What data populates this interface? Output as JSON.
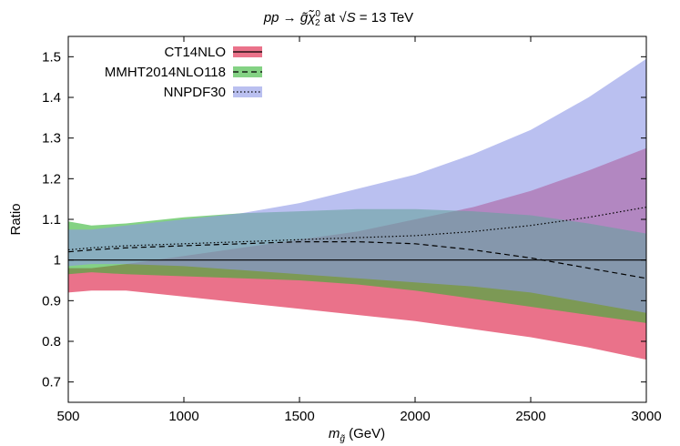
{
  "chart_data": {
    "type": "area",
    "title": "pp → g̃χ̃₀² at √S = 13 TeV",
    "title_parts": {
      "process": "pp → ",
      "gluino": "g̃",
      "neutralino": "χ̃",
      "neutralino_sup": "0",
      "neutralino_sub": "2",
      "at": " at ",
      "sqrt_s": "√S",
      "energy": " = 13 TeV"
    },
    "xlabel": "m_g̃ (GeV)",
    "xlabel_parts": {
      "m": "m",
      "sub": "g̃",
      "unit": " (GeV)"
    },
    "ylabel": "Ratio",
    "xlim": [
      500,
      3000
    ],
    "ylim": [
      0.65,
      1.55
    ],
    "x_ticks": [
      500,
      1000,
      1500,
      2000,
      2500,
      3000
    ],
    "x_tick_labels": [
      "500",
      "1000",
      "1500",
      "2000",
      "2500",
      "3000"
    ],
    "y_ticks": [
      0.7,
      0.8,
      0.9,
      1.0,
      1.1,
      1.2,
      1.3,
      1.4,
      1.5
    ],
    "y_tick_labels": [
      "0.7",
      "0.8",
      "0.9",
      "1",
      "1.1",
      "1.2",
      "1.3",
      "1.4",
      "1.5"
    ],
    "grid": false,
    "legend_position": "top-left",
    "reference_line": 1.0,
    "x": [
      500,
      600,
      750,
      1000,
      1250,
      1500,
      1750,
      2000,
      2250,
      2500,
      2750,
      3000
    ],
    "series": [
      {
        "name": "CT14NLO",
        "color": "#dc143c",
        "line_style": "solid",
        "central": [
          1.0,
          1.0,
          1.0,
          1.0,
          1.0,
          1.0,
          1.0,
          1.0,
          1.0,
          1.0,
          1.0,
          1.0
        ],
        "upper": [
          0.98,
          0.98,
          0.99,
          1.01,
          1.03,
          1.05,
          1.07,
          1.1,
          1.13,
          1.17,
          1.22,
          1.275
        ],
        "lower": [
          0.92,
          0.925,
          0.925,
          0.91,
          0.895,
          0.88,
          0.865,
          0.85,
          0.83,
          0.81,
          0.785,
          0.755
        ]
      },
      {
        "name": "MMHT2014NLO118",
        "color": "#32b432",
        "line_style": "dashed",
        "central": [
          1.02,
          1.025,
          1.03,
          1.035,
          1.04,
          1.045,
          1.045,
          1.04,
          1.025,
          1.005,
          0.98,
          0.955
        ],
        "upper": [
          1.095,
          1.085,
          1.09,
          1.105,
          1.115,
          1.12,
          1.125,
          1.125,
          1.12,
          1.11,
          1.09,
          1.065
        ],
        "lower": [
          0.965,
          0.97,
          0.965,
          0.96,
          0.955,
          0.95,
          0.94,
          0.925,
          0.905,
          0.885,
          0.865,
          0.845
        ]
      },
      {
        "name": "NNPDF30",
        "color": "#8c96e6",
        "line_style": "dotted",
        "central": [
          1.025,
          1.03,
          1.035,
          1.04,
          1.045,
          1.05,
          1.055,
          1.06,
          1.07,
          1.085,
          1.105,
          1.13
        ],
        "upper": [
          1.075,
          1.075,
          1.085,
          1.1,
          1.115,
          1.14,
          1.175,
          1.21,
          1.26,
          1.32,
          1.4,
          1.495
        ],
        "lower": [
          0.985,
          0.99,
          0.99,
          0.985,
          0.975,
          0.965,
          0.955,
          0.945,
          0.935,
          0.92,
          0.895,
          0.87
        ]
      }
    ]
  }
}
